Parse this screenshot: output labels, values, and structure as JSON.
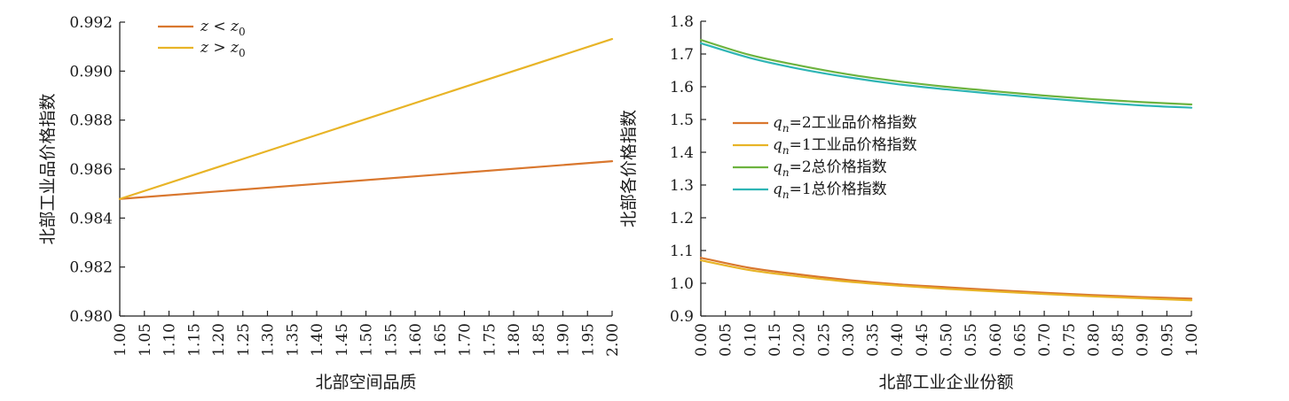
{
  "chart_data": [
    {
      "type": "line",
      "xlabel": "北部空间品质",
      "ylabel": "北部工业品价格指数",
      "xlim": [
        1.0,
        2.0
      ],
      "ylim": [
        0.98,
        0.992
      ],
      "xticks": [
        "1.00",
        "1.05",
        "1.10",
        "1.15",
        "1.20",
        "1.25",
        "1.30",
        "1.35",
        "1.40",
        "1.45",
        "1.50",
        "1.55",
        "1.60",
        "1.65",
        "1.70",
        "1.75",
        "1.80",
        "1.85",
        "1.90",
        "1.95",
        "2.00"
      ],
      "yticks": [
        "0.980",
        "0.982",
        "0.984",
        "0.986",
        "0.988",
        "0.990",
        "0.992"
      ],
      "legend_position": "top-left",
      "series": [
        {
          "name": "z < z0",
          "legend": {
            "var": "z",
            "op": " < ",
            "base": "z",
            "sub": "0"
          },
          "color": "#d9772e",
          "x": [
            1.0,
            2.0
          ],
          "y": [
            0.98478,
            0.98632
          ]
        },
        {
          "name": "z > z0",
          "legend": {
            "var": "z",
            "op": " > ",
            "base": "z",
            "sub": "0"
          },
          "color": "#e8b427",
          "x": [
            1.0,
            2.0
          ],
          "y": [
            0.98478,
            0.99131
          ]
        }
      ]
    },
    {
      "type": "line",
      "xlabel": "北部工业企业份额",
      "ylabel": "北部各价格指数",
      "xlim": [
        0.0,
        1.0
      ],
      "ylim": [
        0.9,
        1.8
      ],
      "xticks": [
        "0.00",
        "0.05",
        "0.10",
        "0.15",
        "0.20",
        "0.25",
        "0.30",
        "0.35",
        "0.40",
        "0.45",
        "0.50",
        "0.55",
        "0.60",
        "0.65",
        "0.70",
        "0.75",
        "0.80",
        "0.85",
        "0.90",
        "0.95",
        "1.00"
      ],
      "yticks": [
        "0.9",
        "1.0",
        "1.1",
        "1.2",
        "1.3",
        "1.4",
        "1.5",
        "1.6",
        "1.7",
        "1.8"
      ],
      "legend_position": "center-left",
      "series": [
        {
          "name": "qn=2工业品价格指数",
          "legend": {
            "var": "q",
            "sub": "n",
            "rest": "=2工业品价格指数"
          },
          "color": "#d9772e",
          "x": [
            0.0,
            0.1,
            0.2,
            0.3,
            0.4,
            0.5,
            0.6,
            0.7,
            0.8,
            0.9,
            1.0
          ],
          "y": [
            1.078,
            1.047,
            1.027,
            1.01,
            0.997,
            0.988,
            0.979,
            0.971,
            0.964,
            0.958,
            0.953
          ]
        },
        {
          "name": "qn=1工业品价格指数",
          "legend": {
            "var": "q",
            "sub": "n",
            "rest": "=1工业品价格指数"
          },
          "color": "#e8b427",
          "x": [
            0.0,
            0.1,
            0.2,
            0.3,
            0.4,
            0.5,
            0.6,
            0.7,
            0.8,
            0.9,
            1.0
          ],
          "y": [
            1.07,
            1.04,
            1.021,
            1.005,
            0.993,
            0.983,
            0.975,
            0.967,
            0.96,
            0.954,
            0.948
          ]
        },
        {
          "name": "qn=2总价格指数",
          "legend": {
            "var": "q",
            "sub": "n",
            "rest": "=2总价格指数"
          },
          "color": "#6db33f",
          "x": [
            0.0,
            0.1,
            0.2,
            0.3,
            0.4,
            0.5,
            0.6,
            0.7,
            0.8,
            0.9,
            1.0
          ],
          "y": [
            1.743,
            1.697,
            1.665,
            1.638,
            1.617,
            1.6,
            1.586,
            1.573,
            1.562,
            1.553,
            1.546
          ]
        },
        {
          "name": "qn=1总价格指数",
          "legend": {
            "var": "q",
            "sub": "n",
            "rest": "=1总价格指数"
          },
          "color": "#2eb5b5",
          "x": [
            0.0,
            0.1,
            0.2,
            0.3,
            0.4,
            0.5,
            0.6,
            0.7,
            0.8,
            0.9,
            1.0
          ],
          "y": [
            1.733,
            1.688,
            1.655,
            1.629,
            1.608,
            1.592,
            1.578,
            1.565,
            1.553,
            1.543,
            1.536
          ]
        }
      ]
    }
  ]
}
